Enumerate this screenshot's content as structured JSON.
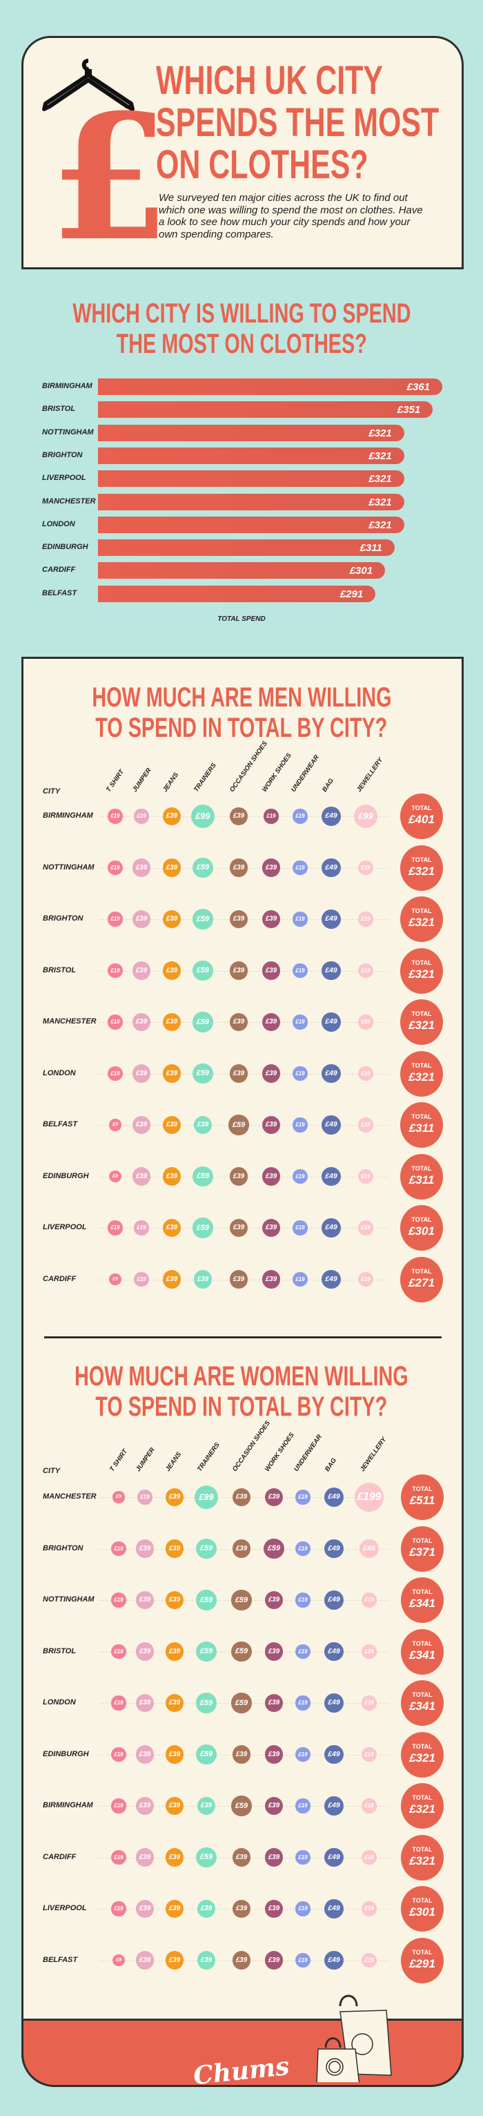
{
  "hero": {
    "title_lines": [
      "Which UK city",
      "spends the most",
      "on clothes?"
    ],
    "intro": "We surveyed ten major cities across the UK to find out which one was willing to spend the most on clothes. Have a look to see how much your city spends and how your own spending compares."
  },
  "colors": {
    "background": "#bce6e0",
    "card": "#faf4e4",
    "accent": "#e8634f",
    "items": {
      "t_shirt": "#f47f95",
      "jumper": "#e9a9c1",
      "jeans": "#f39a1e",
      "trainers": "#7fe0c0",
      "occasion_shoes": "#a77559",
      "work_shoes": "#a45577",
      "underwear": "#8a9ce8",
      "bag": "#5f72b0",
      "jewellery": "#fbc6cc"
    }
  },
  "chart_data": [
    {
      "type": "bar",
      "orientation": "horizontal",
      "title_lines": [
        "Which city is willing to spend",
        "the most on clothes?"
      ],
      "xlabel": "TOTAL SPEND",
      "categories": [
        "BIRMINGHAM",
        "BRISTOL",
        "NOTTINGHAM",
        "BRIGHTON",
        "LIVERPOOL",
        "MANCHESTER",
        "LONDON",
        "EDINBURGH",
        "CARDIFF",
        "BELFAST"
      ],
      "values": [
        361,
        351,
        321,
        321,
        321,
        321,
        321,
        311,
        301,
        291
      ],
      "labels": [
        "£361",
        "£351",
        "£321",
        "£321",
        "£321",
        "£321",
        "£321",
        "£311",
        "£301",
        "£291"
      ]
    },
    {
      "type": "table",
      "title_lines": [
        "How much are men willing",
        "to spend in total by city?"
      ],
      "city_header": "CITY",
      "columns": [
        "T SHIRT",
        "JUMPER",
        "JEANS",
        "TRAINERS",
        "OCCASION SHOES",
        "WORK SHOES",
        "UNDERWEAR",
        "BAG",
        "JEWELLERY"
      ],
      "total_label": "TOTAL",
      "rows": [
        {
          "city": "BIRMINGHAM",
          "values": [
            "£19",
            "£19",
            "£39",
            "£99",
            "£39",
            "£19",
            "£19",
            "£49",
            "£99"
          ],
          "total": "£401"
        },
        {
          "city": "NOTTINGHAM",
          "values": [
            "£19",
            "£39",
            "£39",
            "£59",
            "£39",
            "£39",
            "£19",
            "£49",
            "£19"
          ],
          "total": "£321"
        },
        {
          "city": "BRIGHTON",
          "values": [
            "£19",
            "£39",
            "£39",
            "£59",
            "£39",
            "£39",
            "£19",
            "£49",
            "£19"
          ],
          "total": "£321"
        },
        {
          "city": "BRISTOL",
          "values": [
            "£19",
            "£39",
            "£39",
            "£59",
            "£39",
            "£39",
            "£19",
            "£49",
            "£19"
          ],
          "total": "£321"
        },
        {
          "city": "MANCHESTER",
          "values": [
            "£19",
            "£39",
            "£39",
            "£59",
            "£39",
            "£39",
            "£19",
            "£49",
            "£19"
          ],
          "total": "£321"
        },
        {
          "city": "LONDON",
          "values": [
            "£19",
            "£39",
            "£39",
            "£59",
            "£39",
            "£39",
            "£19",
            "£49",
            "£19"
          ],
          "total": "£321"
        },
        {
          "city": "BELFAST",
          "values": [
            "£9",
            "£39",
            "£39",
            "£39",
            "£59",
            "£39",
            "£19",
            "£49",
            "£19"
          ],
          "total": "£311"
        },
        {
          "city": "EDINBURGH",
          "values": [
            "£9",
            "£39",
            "£39",
            "£59",
            "£39",
            "£39",
            "£19",
            "£49",
            "£19"
          ],
          "total": "£311"
        },
        {
          "city": "LIVERPOOL",
          "values": [
            "£19",
            "£19",
            "£39",
            "£59",
            "£39",
            "£39",
            "£19",
            "£49",
            "£19"
          ],
          "total": "£301"
        },
        {
          "city": "CARDIFF",
          "values": [
            "£9",
            "£19",
            "£39",
            "£39",
            "£39",
            "£39",
            "£19",
            "£49",
            "£19"
          ],
          "total": "£271"
        }
      ]
    },
    {
      "type": "table",
      "title_lines": [
        "How much are women willing",
        "to spend in total by city?"
      ],
      "city_header": "CITY",
      "columns": [
        "T SHIRT",
        "JUMPER",
        "JEANS",
        "TRAINERS",
        "OCCASION SHOES",
        "WORK SHOES",
        "UNDERWEAR",
        "BAG",
        "JEWELLERY"
      ],
      "total_label": "TOTAL",
      "rows": [
        {
          "city": "MANCHESTER",
          "values": [
            "£9",
            "£19",
            "£39",
            "£99",
            "£39",
            "£39",
            "£19",
            "£49",
            "£199"
          ],
          "total": "£511"
        },
        {
          "city": "BRIGHTON",
          "values": [
            "£19",
            "£39",
            "£39",
            "£59",
            "£39",
            "£59",
            "£19",
            "£49",
            "£49"
          ],
          "total": "£371"
        },
        {
          "city": "NOTTINGHAM",
          "values": [
            "£19",
            "£39",
            "£39",
            "£59",
            "£59",
            "£39",
            "£19",
            "£49",
            "£19"
          ],
          "total": "£341"
        },
        {
          "city": "BRISTOL",
          "values": [
            "£19",
            "£39",
            "£39",
            "£59",
            "£59",
            "£39",
            "£19",
            "£49",
            "£19"
          ],
          "total": "£341"
        },
        {
          "city": "LONDON",
          "values": [
            "£19",
            "£39",
            "£39",
            "£59",
            "£59",
            "£39",
            "£19",
            "£49",
            "£19"
          ],
          "total": "£341"
        },
        {
          "city": "EDINBURGH",
          "values": [
            "£19",
            "£39",
            "£39",
            "£59",
            "£39",
            "£39",
            "£19",
            "£49",
            "£19"
          ],
          "total": "£321"
        },
        {
          "city": "BIRMINGHAM",
          "values": [
            "£19",
            "£39",
            "£39",
            "£39",
            "£59",
            "£39",
            "£19",
            "£49",
            "£19"
          ],
          "total": "£321"
        },
        {
          "city": "CARDIFF",
          "values": [
            "£19",
            "£39",
            "£39",
            "£59",
            "£39",
            "£39",
            "£19",
            "£49",
            "£19"
          ],
          "total": "£321"
        },
        {
          "city": "LIVERPOOL",
          "values": [
            "£19",
            "£39",
            "£39",
            "£39",
            "£39",
            "£39",
            "£19",
            "£49",
            "£19"
          ],
          "total": "£301"
        },
        {
          "city": "BELFAST",
          "values": [
            "£9",
            "£39",
            "£39",
            "£39",
            "£39",
            "£39",
            "£19",
            "£49",
            "£19"
          ],
          "total": "£291"
        }
      ]
    }
  ],
  "footer": {
    "brand": "Chums"
  }
}
